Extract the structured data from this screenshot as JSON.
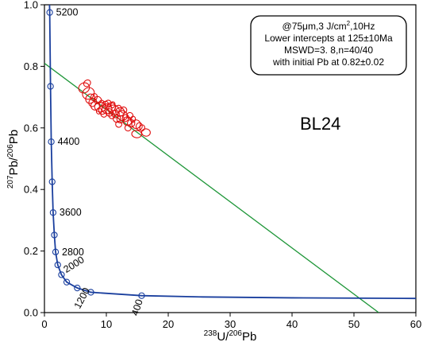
{
  "chart_data": {
    "type": "scatter",
    "title": "",
    "sample_label": "BL24",
    "xlabel": {
      "sup1": "238",
      "main1": "U/",
      "sup2": "206",
      "main2": "Pb"
    },
    "ylabel": {
      "sup1": "207",
      "main1": "Pb/",
      "sup2": "206",
      "main2": "Pb"
    },
    "xlim": [
      0,
      60
    ],
    "ylim": [
      0,
      1.0
    ],
    "x_ticks": [
      "0",
      "10",
      "20",
      "30",
      "40",
      "50",
      "60"
    ],
    "y_ticks": [
      "0.0",
      "0.2",
      "0.4",
      "0.6",
      "0.8",
      "1.0"
    ],
    "grid": false,
    "annotation": {
      "line1": "@75μm,3 J/cm",
      "line1_sup": "2",
      "line1_tail": ",10Hz",
      "line2": "Lower intercepts at 125±10Ma",
      "line3": "MSWD=3. 8,n=40/40",
      "line4": "with initial Pb at 0.82±0.02"
    },
    "concordia": {
      "color": "#1a3f9e",
      "ages": [
        {
          "age": "5200",
          "x": 0.85,
          "y": 0.975,
          "labeled": true
        },
        {
          "age": "4800",
          "x": 0.98,
          "y": 0.735,
          "labeled": false
        },
        {
          "age": "4400",
          "x": 1.1,
          "y": 0.555,
          "labeled": true
        },
        {
          "age": "4000",
          "x": 1.25,
          "y": 0.425,
          "labeled": false
        },
        {
          "age": "3600",
          "x": 1.4,
          "y": 0.325,
          "labeled": true
        },
        {
          "age": "3200",
          "x": 1.6,
          "y": 0.252,
          "labeled": false
        },
        {
          "age": "2800",
          "x": 1.8,
          "y": 0.197,
          "labeled": true
        },
        {
          "age": "2400",
          "x": 2.15,
          "y": 0.155,
          "labeled": false
        },
        {
          "age": "2000",
          "x": 2.75,
          "y": 0.123,
          "labeled": true
        },
        {
          "age": "1600",
          "x": 3.6,
          "y": 0.099,
          "labeled": false
        },
        {
          "age": "1200",
          "x": 5.3,
          "y": 0.08,
          "labeled": true
        },
        {
          "age": "800",
          "x": 7.5,
          "y": 0.066,
          "labeled": false
        },
        {
          "age": "400",
          "x": 15.7,
          "y": 0.055,
          "labeled": true
        }
      ]
    },
    "discordia": {
      "color": "#1e9638",
      "y_intercept": 0.81,
      "x_intercept": 54.0
    },
    "ellipse_color": "#e01010",
    "points": [
      {
        "x": 6.4,
        "y": 0.73,
        "rx": 0.8,
        "ry": 0.018,
        "rot": 60
      },
      {
        "x": 7.1,
        "y": 0.712,
        "rx": 0.9,
        "ry": 0.02,
        "rot": 50
      },
      {
        "x": 7.4,
        "y": 0.695,
        "rx": 0.7,
        "ry": 0.016,
        "rot": 40
      },
      {
        "x": 7.8,
        "y": 0.683,
        "rx": 0.6,
        "ry": 0.014,
        "rot": 30
      },
      {
        "x": 8.6,
        "y": 0.69,
        "rx": 0.6,
        "ry": 0.012,
        "rot": 20
      },
      {
        "x": 8.2,
        "y": 0.672,
        "rx": 0.7,
        "ry": 0.014,
        "rot": 25
      },
      {
        "x": 9.0,
        "y": 0.668,
        "rx": 0.9,
        "ry": 0.016,
        "rot": 15
      },
      {
        "x": 9.4,
        "y": 0.658,
        "rx": 0.6,
        "ry": 0.014,
        "rot": 20
      },
      {
        "x": 9.8,
        "y": 0.675,
        "rx": 0.5,
        "ry": 0.012,
        "rot": 30
      },
      {
        "x": 10.1,
        "y": 0.662,
        "rx": 0.8,
        "ry": 0.016,
        "rot": 10
      },
      {
        "x": 10.5,
        "y": 0.65,
        "rx": 0.6,
        "ry": 0.012,
        "rot": 15
      },
      {
        "x": 10.8,
        "y": 0.668,
        "rx": 0.7,
        "ry": 0.014,
        "rot": 25
      },
      {
        "x": 11.2,
        "y": 0.658,
        "rx": 0.9,
        "ry": 0.016,
        "rot": 20
      },
      {
        "x": 11.5,
        "y": 0.645,
        "rx": 0.6,
        "ry": 0.012,
        "rot": 10
      },
      {
        "x": 11.9,
        "y": 0.662,
        "rx": 0.5,
        "ry": 0.012,
        "rot": 30
      },
      {
        "x": 12.2,
        "y": 0.652,
        "rx": 0.7,
        "ry": 0.014,
        "rot": 15
      },
      {
        "x": 12.6,
        "y": 0.64,
        "rx": 0.8,
        "ry": 0.016,
        "rot": 20
      },
      {
        "x": 12.3,
        "y": 0.628,
        "rx": 0.6,
        "ry": 0.012,
        "rot": 10
      },
      {
        "x": 13.1,
        "y": 0.632,
        "rx": 0.5,
        "ry": 0.012,
        "rot": 25
      },
      {
        "x": 13.4,
        "y": 0.622,
        "rx": 0.7,
        "ry": 0.014,
        "rot": 15
      },
      {
        "x": 14.0,
        "y": 0.615,
        "rx": 0.6,
        "ry": 0.012,
        "rot": 10
      },
      {
        "x": 14.8,
        "y": 0.612,
        "rx": 0.7,
        "ry": 0.014,
        "rot": 5
      },
      {
        "x": 15.3,
        "y": 0.605,
        "rx": 0.5,
        "ry": 0.012,
        "rot": 10
      },
      {
        "x": 14.9,
        "y": 0.58,
        "rx": 0.8,
        "ry": 0.012,
        "rot": 5
      },
      {
        "x": 16.4,
        "y": 0.585,
        "rx": 0.7,
        "ry": 0.012,
        "rot": 5
      },
      {
        "x": 9.6,
        "y": 0.645,
        "rx": 0.5,
        "ry": 0.01,
        "rot": 10
      },
      {
        "x": 10.9,
        "y": 0.64,
        "rx": 0.5,
        "ry": 0.01,
        "rot": 15
      },
      {
        "x": 11.7,
        "y": 0.63,
        "rx": 0.6,
        "ry": 0.012,
        "rot": 20
      },
      {
        "x": 13.8,
        "y": 0.64,
        "rx": 0.5,
        "ry": 0.01,
        "rot": 10
      },
      {
        "x": 8.0,
        "y": 0.7,
        "rx": 0.5,
        "ry": 0.012,
        "rot": 30
      },
      {
        "x": 10.3,
        "y": 0.68,
        "rx": 0.5,
        "ry": 0.01,
        "rot": 20
      },
      {
        "x": 12.8,
        "y": 0.658,
        "rx": 0.5,
        "ry": 0.01,
        "rot": 15
      },
      {
        "x": 13.5,
        "y": 0.6,
        "rx": 0.5,
        "ry": 0.01,
        "rot": 10
      },
      {
        "x": 12.0,
        "y": 0.612,
        "rx": 0.5,
        "ry": 0.01,
        "rot": 10
      },
      {
        "x": 9.2,
        "y": 0.68,
        "rx": 0.4,
        "ry": 0.01,
        "rot": 20
      },
      {
        "x": 11.0,
        "y": 0.675,
        "rx": 0.4,
        "ry": 0.01,
        "rot": 20
      },
      {
        "x": 8.8,
        "y": 0.655,
        "rx": 0.4,
        "ry": 0.01,
        "rot": 15
      },
      {
        "x": 14.3,
        "y": 0.628,
        "rx": 0.4,
        "ry": 0.01,
        "rot": 10
      },
      {
        "x": 6.9,
        "y": 0.745,
        "rx": 0.5,
        "ry": 0.012,
        "rot": 50
      },
      {
        "x": 15.8,
        "y": 0.6,
        "rx": 0.4,
        "ry": 0.01,
        "rot": 10
      }
    ]
  }
}
